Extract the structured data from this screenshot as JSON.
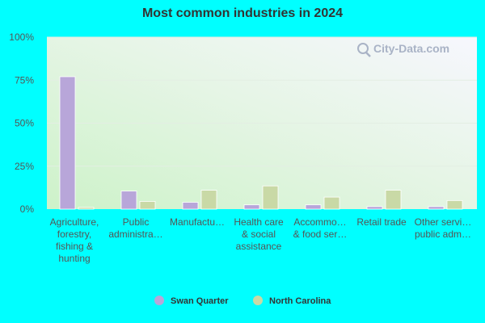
{
  "chart_data": {
    "type": "bar",
    "title": "Most common industries in 2024",
    "categories": [
      [
        "Agriculture,",
        "forestry,",
        "fishing &",
        "hunting"
      ],
      [
        "Public",
        "administra…"
      ],
      [
        "Manufactu…"
      ],
      [
        "Health care",
        "& social",
        "assistance"
      ],
      [
        "Accommo…",
        "& food ser…"
      ],
      [
        "Retail trade"
      ],
      [
        "Other servi…",
        "public adm…"
      ]
    ],
    "series": [
      {
        "name": "Swan Quarter",
        "color": "#b8a6d9",
        "values": [
          77,
          10.5,
          4,
          2.5,
          2.5,
          1.5,
          1.5
        ]
      },
      {
        "name": "North Carolina",
        "color": "#c9d9a6",
        "values": [
          1,
          4.5,
          11,
          13.5,
          7,
          11,
          5
        ]
      }
    ],
    "ylim": [
      0,
      100
    ],
    "yticks": [
      0,
      25,
      50,
      75,
      100
    ],
    "ytick_labels": [
      "0%",
      "25%",
      "50%",
      "75%",
      "100%"
    ],
    "grid": true,
    "legend_position": "bottom"
  },
  "watermark": "City-Data.com"
}
